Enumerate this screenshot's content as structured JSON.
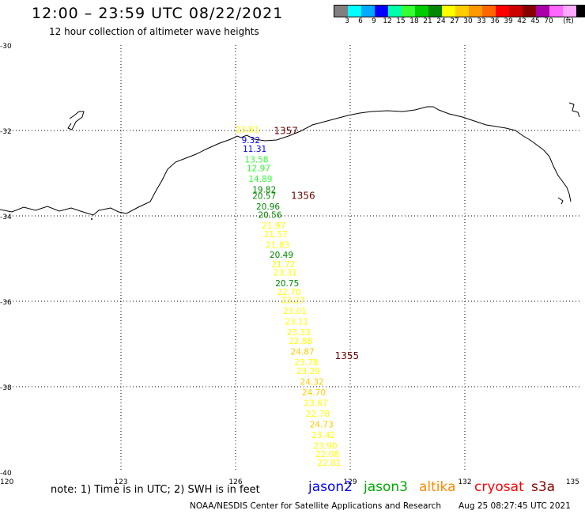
{
  "header": {
    "title": "12:00 – 23:59 UTC 08/22/2021",
    "subtitle": "12 hour collection of altimeter wave heights"
  },
  "colorbar": {
    "swatches": [
      "#808080",
      "#00ffff",
      "#00aaff",
      "#0000ff",
      "#00ffaa",
      "#33ff33",
      "#00cc00",
      "#008800",
      "#ffff00",
      "#ffcc00",
      "#ff9900",
      "#ff6600",
      "#ff0000",
      "#cc0000",
      "#880000",
      "#aa00aa",
      "#ff66ff",
      "#ffaaff",
      "#000000"
    ],
    "labels": [
      "3",
      "6",
      "9",
      "12",
      "15",
      "18",
      "21",
      "24",
      "27",
      "30",
      "33",
      "36",
      "39",
      "42",
      "45",
      "70",
      "(ft)"
    ]
  },
  "axes": {
    "lon_min": 120,
    "lon_max": 135,
    "lat_min": -40,
    "lat_max": -30,
    "lon_ticks": [
      "120",
      "123",
      "126",
      "129",
      "132",
      "135"
    ],
    "lat_ticks": [
      "-30",
      "-32",
      "-34",
      "-36",
      "-38",
      "-40"
    ],
    "grid": "dotted"
  },
  "track": {
    "time_labels": [
      {
        "text": "1357",
        "lon": 127.0,
        "lat": -32.08
      },
      {
        "text": "1356",
        "lon": 127.45,
        "lat": -33.6
      },
      {
        "text": "1355",
        "lon": 128.6,
        "lat": -37.35
      }
    ],
    "swh": [
      {
        "text": "23.81",
        "lon": 126.3,
        "lat": -32.05,
        "color": "#ffff00"
      },
      {
        "text": "9.32",
        "lon": 126.4,
        "lat": -32.3,
        "color": "#0000ff"
      },
      {
        "text": "11.31",
        "lon": 126.5,
        "lat": -32.5,
        "color": "#0000ff"
      },
      {
        "text": "13.58",
        "lon": 126.55,
        "lat": -32.75,
        "color": "#33ff33"
      },
      {
        "text": "12.97",
        "lon": 126.6,
        "lat": -32.95,
        "color": "#33ff33"
      },
      {
        "text": "14.89",
        "lon": 126.65,
        "lat": -33.2,
        "color": "#33ff33"
      },
      {
        "text": "19.82",
        "lon": 126.75,
        "lat": -33.45,
        "color": "#008800"
      },
      {
        "text": "20.57",
        "lon": 126.75,
        "lat": -33.6,
        "color": "#008800"
      },
      {
        "text": "20.96",
        "lon": 126.85,
        "lat": -33.85,
        "color": "#008800"
      },
      {
        "text": "20.56",
        "lon": 126.9,
        "lat": -34.05,
        "color": "#008800"
      },
      {
        "text": "21.97",
        "lon": 127.0,
        "lat": -34.3,
        "color": "#ffff00"
      },
      {
        "text": "21.57",
        "lon": 127.05,
        "lat": -34.5,
        "color": "#ffff00"
      },
      {
        "text": "21.83",
        "lon": 127.1,
        "lat": -34.75,
        "color": "#ffff00"
      },
      {
        "text": "20.49",
        "lon": 127.2,
        "lat": -34.98,
        "color": "#008800"
      },
      {
        "text": "21.72",
        "lon": 127.25,
        "lat": -35.2,
        "color": "#ffff00"
      },
      {
        "text": "23.31",
        "lon": 127.3,
        "lat": -35.4,
        "color": "#ffff00"
      },
      {
        "text": "20.75",
        "lon": 127.35,
        "lat": -35.65,
        "color": "#008800"
      },
      {
        "text": "22.70",
        "lon": 127.4,
        "lat": -35.85,
        "color": "#ffff00"
      },
      {
        "text": "23.27",
        "lon": 127.5,
        "lat": -36.05,
        "color": "#ffff00"
      },
      {
        "text": "23.01",
        "lon": 127.55,
        "lat": -36.3,
        "color": "#ffff00"
      },
      {
        "text": "23.11",
        "lon": 127.6,
        "lat": -36.55,
        "color": "#ffff00"
      },
      {
        "text": "23.33",
        "lon": 127.65,
        "lat": -36.8,
        "color": "#ffff00"
      },
      {
        "text": "22.88",
        "lon": 127.7,
        "lat": -37.0,
        "color": "#ffff00"
      },
      {
        "text": "24.87",
        "lon": 127.75,
        "lat": -37.25,
        "color": "#ffcc00"
      },
      {
        "text": "23.78",
        "lon": 127.85,
        "lat": -37.5,
        "color": "#ffff00"
      },
      {
        "text": "23.29",
        "lon": 127.9,
        "lat": -37.7,
        "color": "#ffff00"
      },
      {
        "text": "24.32",
        "lon": 128.0,
        "lat": -37.95,
        "color": "#ffcc00"
      },
      {
        "text": "24.70",
        "lon": 128.05,
        "lat": -38.2,
        "color": "#ffcc00"
      },
      {
        "text": "23.67",
        "lon": 128.1,
        "lat": -38.45,
        "color": "#ffff00"
      },
      {
        "text": "22.78",
        "lon": 128.15,
        "lat": -38.7,
        "color": "#ffff00"
      },
      {
        "text": "24.73",
        "lon": 128.25,
        "lat": -38.95,
        "color": "#ffcc00"
      },
      {
        "text": "23.42",
        "lon": 128.3,
        "lat": -39.2,
        "color": "#ffff00"
      },
      {
        "text": "23.90",
        "lon": 128.35,
        "lat": -39.45,
        "color": "#ffff00"
      },
      {
        "text": "22.08",
        "lon": 128.4,
        "lat": -39.65,
        "color": "#ffff00"
      },
      {
        "text": "22.81",
        "lon": 128.45,
        "lat": -39.85,
        "color": "#ffff00"
      }
    ]
  },
  "footer": {
    "note": "note:  1) Time is in UTC;  2) SWH is in feet",
    "satellites": [
      {
        "name": "jason2",
        "color": "#0000ff"
      },
      {
        "name": "jason3",
        "color": "#00aa00"
      },
      {
        "name": "altika",
        "color": "#ff8800"
      },
      {
        "name": "cryosat",
        "color": "#ff0000"
      },
      {
        "name": "s3a",
        "color": "#880000"
      }
    ],
    "credit": "NOAA/NESDIS Center for Satellite Applications and Research",
    "timestamp": "Aug 25 08:27:45 UTC 2021"
  }
}
